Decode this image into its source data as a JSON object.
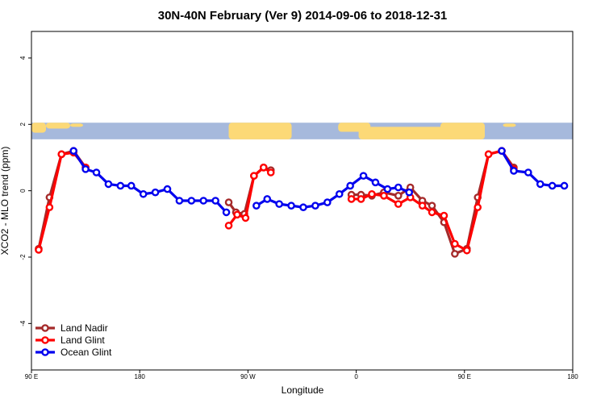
{
  "chart_data": {
    "type": "line",
    "title": "30N-40N February (Ver 9)   2014-09-06 to 2018-12-31",
    "xlabel": "Longitude",
    "ylabel": "XCO2 - MLO trend (ppm)",
    "xlim": [
      90,
      540
    ],
    "ylim": [
      -5.4,
      4.8
    ],
    "x_ticks": [
      {
        "value": 90,
        "label": "90 E"
      },
      {
        "value": 180,
        "label": "180"
      },
      {
        "value": 270,
        "label": "90 W"
      },
      {
        "value": 360,
        "label": "0"
      },
      {
        "value": 450,
        "label": "90 E"
      },
      {
        "value": 540,
        "label": "180"
      }
    ],
    "y_ticks": [
      {
        "value": -4,
        "label": "-4"
      },
      {
        "value": -2,
        "label": "-2"
      },
      {
        "value": 0,
        "label": "0"
      },
      {
        "value": 2,
        "label": "2"
      },
      {
        "value": 4,
        "label": "4"
      }
    ],
    "map_band": {
      "ylim": [
        1.55,
        2.05
      ],
      "ocean_color": "#a6b9dc",
      "land_color": "#fcd977"
    },
    "legend_position": "bottom-left",
    "series": [
      {
        "name": "Land Nadir",
        "color": "#a52a2a",
        "segments": [
          [
            [
              96,
              -1.75
            ],
            [
              105,
              -0.2
            ],
            [
              115,
              1.1
            ],
            [
              125,
              1.2
            ],
            [
              135,
              0.7
            ]
          ],
          [
            [
              254,
              -0.35
            ],
            [
              260,
              -0.65
            ],
            [
              267,
              -0.7
            ],
            [
              275,
              0.45
            ],
            [
              283,
              0.7
            ],
            [
              289,
              0.62
            ]
          ],
          [
            [
              356,
              -0.12
            ],
            [
              364,
              -0.12
            ],
            [
              373,
              -0.15
            ],
            [
              383,
              -0.05
            ],
            [
              395,
              -0.15
            ],
            [
              405,
              0.1
            ],
            [
              415,
              -0.3
            ],
            [
              423,
              -0.45
            ],
            [
              433,
              -0.95
            ],
            [
              442,
              -1.9
            ],
            [
              452,
              -1.75
            ],
            [
              461,
              -0.2
            ],
            [
              470,
              1.1
            ],
            [
              481,
              1.2
            ],
            [
              491,
              0.7
            ]
          ]
        ]
      },
      {
        "name": "Land Glint",
        "color": "#ff0000",
        "segments": [
          [
            [
              96,
              -1.78
            ],
            [
              105,
              -0.5
            ],
            [
              115,
              1.1
            ],
            [
              125,
              1.15
            ],
            [
              135,
              0.7
            ]
          ],
          [
            [
              254,
              -1.05
            ],
            [
              261,
              -0.72
            ],
            [
              268,
              -0.82
            ],
            [
              275,
              0.45
            ],
            [
              283,
              0.7
            ],
            [
              289,
              0.55
            ]
          ],
          [
            [
              356,
              -0.25
            ],
            [
              364,
              -0.25
            ],
            [
              373,
              -0.1
            ],
            [
              383,
              -0.15
            ],
            [
              395,
              -0.4
            ],
            [
              405,
              -0.2
            ],
            [
              415,
              -0.45
            ],
            [
              423,
              -0.65
            ],
            [
              433,
              -0.75
            ],
            [
              442,
              -1.6
            ],
            [
              452,
              -1.8
            ],
            [
              461,
              -0.5
            ],
            [
              470,
              1.1
            ],
            [
              481,
              1.2
            ],
            [
              491,
              0.65
            ]
          ]
        ]
      },
      {
        "name": "Ocean Glint",
        "color": "#0000ee",
        "segments": [
          [
            [
              125,
              1.2
            ],
            [
              135,
              0.65
            ],
            [
              144,
              0.55
            ],
            [
              154,
              0.2
            ],
            [
              164,
              0.15
            ],
            [
              173,
              0.15
            ],
            [
              183,
              -0.1
            ],
            [
              193,
              -0.05
            ],
            [
              203,
              0.05
            ],
            [
              213,
              -0.3
            ],
            [
              223,
              -0.3
            ],
            [
              233,
              -0.3
            ],
            [
              243,
              -0.3
            ],
            [
              252,
              -0.65
            ]
          ],
          [
            [
              277,
              -0.45
            ],
            [
              286,
              -0.25
            ],
            [
              296,
              -0.4
            ],
            [
              306,
              -0.45
            ],
            [
              316,
              -0.5
            ],
            [
              326,
              -0.45
            ],
            [
              336,
              -0.35
            ],
            [
              346,
              -0.1
            ],
            [
              355,
              0.15
            ],
            [
              366,
              0.45
            ],
            [
              376,
              0.25
            ],
            [
              386,
              0.05
            ],
            [
              395,
              0.1
            ],
            [
              404,
              -0.05
            ]
          ],
          [
            [
              481,
              1.2
            ],
            [
              491,
              0.6
            ],
            [
              503,
              0.55
            ],
            [
              513,
              0.2
            ],
            [
              523,
              0.15
            ],
            [
              533,
              0.15
            ]
          ]
        ]
      }
    ]
  }
}
